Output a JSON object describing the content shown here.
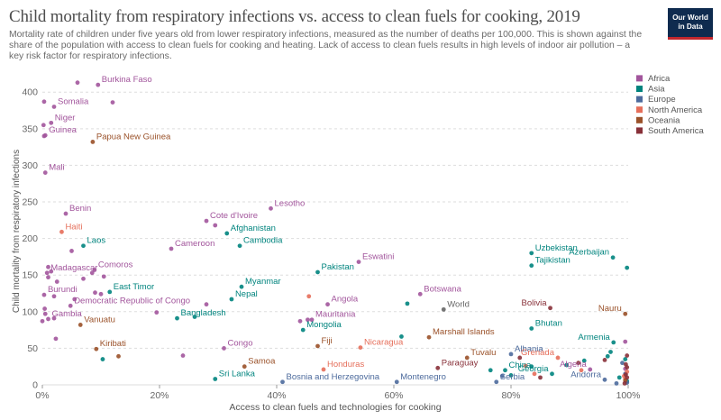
{
  "header": {
    "title": "Child mortality from respiratory infections vs. access to clean fuels for cooking, 2019",
    "subtitle": "Mortality rate of children under five years old from lower respiratory infections, measured as the number of deaths per 100,000. This is shown against the share of the population with access to clean fuels for cooking and heating. Lack of access to clean fuels results in high levels of indoor air pollution – a key risk factor for respiratory infections.",
    "logo_line1": "Our World",
    "logo_line2": "in Data"
  },
  "colors": {
    "Africa": "#a2559c",
    "Asia": "#00847e",
    "Europe": "#4c6a9c",
    "North America": "#e56e5a",
    "Oceania": "#9a5129",
    "South America": "#883039",
    "label_gray": "#666666"
  },
  "chart_data": {
    "type": "scatter",
    "title": "Child mortality from respiratory infections vs. access to clean fuels for cooking, 2019",
    "xlabel": "Access to clean fuels and technologies for cooking",
    "ylabel": "Child mortality from respiratory infections",
    "xlim": [
      0,
      100
    ],
    "ylim": [
      0,
      420
    ],
    "x_ticks": [
      "0%",
      "20%",
      "40%",
      "60%",
      "80%",
      "100%"
    ],
    "x_tick_values": [
      0,
      20,
      40,
      60,
      80,
      100
    ],
    "y_ticks": [
      "0",
      "50",
      "100",
      "150",
      "200",
      "250",
      "300",
      "350",
      "400"
    ],
    "y_tick_values": [
      0,
      50,
      100,
      150,
      200,
      250,
      300,
      350,
      400
    ],
    "grid": "horizontal dashed",
    "legend_position": "right",
    "legend": [
      "Africa",
      "Asia",
      "Europe",
      "North America",
      "Oceania",
      "South America"
    ],
    "labeled_points": [
      {
        "name": "Burkina Faso",
        "region": "Africa",
        "x": 9.5,
        "y": 410
      },
      {
        "name": "Somalia",
        "region": "Africa",
        "x": 2.0,
        "y": 380
      },
      {
        "name": "Niger",
        "region": "Africa",
        "x": 1.5,
        "y": 358
      },
      {
        "name": "Guinea",
        "region": "Africa",
        "x": 0.5,
        "y": 341
      },
      {
        "name": "Papua New Guinea",
        "region": "Oceania",
        "x": 8.6,
        "y": 332
      },
      {
        "name": "Mali",
        "region": "Africa",
        "x": 0.5,
        "y": 290
      },
      {
        "name": "Lesotho",
        "region": "Africa",
        "x": 39.0,
        "y": 241
      },
      {
        "name": "Benin",
        "region": "Africa",
        "x": 4.0,
        "y": 234
      },
      {
        "name": "Cote d'Ivoire",
        "region": "Africa",
        "x": 28.0,
        "y": 224
      },
      {
        "name": "Haiti",
        "region": "North America",
        "x": 3.3,
        "y": 209
      },
      {
        "name": "Afghanistan",
        "region": "Asia",
        "x": 31.5,
        "y": 207
      },
      {
        "name": "Laos",
        "region": "Asia",
        "x": 7.0,
        "y": 190
      },
      {
        "name": "Cameroon",
        "region": "Africa",
        "x": 22.0,
        "y": 186
      },
      {
        "name": "Cambodia",
        "region": "Asia",
        "x": 33.7,
        "y": 190
      },
      {
        "name": "Uzbekistan",
        "region": "Asia",
        "x": 83.5,
        "y": 180
      },
      {
        "name": "Azerbaijan",
        "region": "Asia",
        "x": 97.4,
        "y": 174
      },
      {
        "name": "Eswatini",
        "region": "Africa",
        "x": 54.0,
        "y": 168
      },
      {
        "name": "Tajikistan",
        "region": "Asia",
        "x": 83.5,
        "y": 163
      },
      {
        "name": "Comoros",
        "region": "Africa",
        "x": 8.9,
        "y": 157
      },
      {
        "name": "Pakistan",
        "region": "Asia",
        "x": 47.0,
        "y": 154
      },
      {
        "name": "Madagascar",
        "region": "Africa",
        "x": 0.8,
        "y": 153
      },
      {
        "name": "Myanmar",
        "region": "Asia",
        "x": 34.0,
        "y": 134
      },
      {
        "name": "East Timor",
        "region": "Asia",
        "x": 11.5,
        "y": 127
      },
      {
        "name": "Botswana",
        "region": "Africa",
        "x": 64.5,
        "y": 124
      },
      {
        "name": "Burundi",
        "region": "Africa",
        "x": 0.3,
        "y": 123
      },
      {
        "name": "Nepal",
        "region": "Asia",
        "x": 32.3,
        "y": 117
      },
      {
        "name": "Angola",
        "region": "Africa",
        "x": 48.7,
        "y": 110
      },
      {
        "name": "Democratic Republic of Congo",
        "region": "Africa",
        "x": 4.8,
        "y": 108
      },
      {
        "name": "Bolivia",
        "region": "South America",
        "x": 86.7,
        "y": 105
      },
      {
        "name": "World",
        "region": "World",
        "x": 68.5,
        "y": 103
      },
      {
        "name": "Nauru",
        "region": "Oceania",
        "x": 99.5,
        "y": 97
      },
      {
        "name": "Gambia",
        "region": "Africa",
        "x": 1.0,
        "y": 90
      },
      {
        "name": "Bangladesh",
        "region": "Asia",
        "x": 23.0,
        "y": 91
      },
      {
        "name": "Vanuatu",
        "region": "Oceania",
        "x": 6.5,
        "y": 82
      },
      {
        "name": "Mauritania",
        "region": "Africa",
        "x": 46.0,
        "y": 89
      },
      {
        "name": "Bhutan",
        "region": "Asia",
        "x": 83.5,
        "y": 77
      },
      {
        "name": "Mongolia",
        "region": "Asia",
        "x": 44.5,
        "y": 75
      },
      {
        "name": "Marshall Islands",
        "region": "Oceania",
        "x": 66.0,
        "y": 65
      },
      {
        "name": "Fiji",
        "region": "Oceania",
        "x": 47.0,
        "y": 53
      },
      {
        "name": "Nicaragua",
        "region": "North America",
        "x": 54.3,
        "y": 51
      },
      {
        "name": "Kiribati",
        "region": "Oceania",
        "x": 9.2,
        "y": 49
      },
      {
        "name": "Congo",
        "region": "Africa",
        "x": 31.0,
        "y": 50
      },
      {
        "name": "Armenia",
        "region": "Asia",
        "x": 97.5,
        "y": 58
      },
      {
        "name": "Albania",
        "region": "Europe",
        "x": 80.0,
        "y": 42
      },
      {
        "name": "Tuvalu",
        "region": "Oceania",
        "x": 72.5,
        "y": 37
      },
      {
        "name": "Grenada",
        "region": "North America",
        "x": 88.0,
        "y": 37
      },
      {
        "name": "Samoa",
        "region": "Oceania",
        "x": 34.5,
        "y": 25
      },
      {
        "name": "Honduras",
        "region": "North America",
        "x": 48.0,
        "y": 21
      },
      {
        "name": "Paraguay",
        "region": "South America",
        "x": 67.5,
        "y": 23
      },
      {
        "name": "China",
        "region": "Asia",
        "x": 79.0,
        "y": 20
      },
      {
        "name": "Georgia",
        "region": "Asia",
        "x": 87.0,
        "y": 15
      },
      {
        "name": "Algeria",
        "region": "Africa",
        "x": 93.5,
        "y": 21
      },
      {
        "name": "Sri Lanka",
        "region": "Asia",
        "x": 29.5,
        "y": 8
      },
      {
        "name": "Bosnia and Herzegovina",
        "region": "Europe",
        "x": 41.0,
        "y": 4
      },
      {
        "name": "Montenegro",
        "region": "Europe",
        "x": 60.5,
        "y": 4
      },
      {
        "name": "Serbia",
        "region": "Europe",
        "x": 77.5,
        "y": 4
      },
      {
        "name": "Andorra",
        "region": "Europe",
        "x": 96.0,
        "y": 7
      }
    ],
    "other_points": [
      {
        "region": "Africa",
        "x": 0.2,
        "y": 355
      },
      {
        "region": "Africa",
        "x": 0.3,
        "y": 340
      },
      {
        "region": "Africa",
        "x": 6.0,
        "y": 413
      },
      {
        "region": "Africa",
        "x": 0.3,
        "y": 387
      },
      {
        "region": "Africa",
        "x": 12.0,
        "y": 386
      },
      {
        "region": "Africa",
        "x": 29.5,
        "y": 218
      },
      {
        "region": "Africa",
        "x": 5.0,
        "y": 183
      },
      {
        "region": "Africa",
        "x": 1.0,
        "y": 161
      },
      {
        "region": "Africa",
        "x": 1.5,
        "y": 155
      },
      {
        "region": "Africa",
        "x": 1.0,
        "y": 147
      },
      {
        "region": "Africa",
        "x": 10.5,
        "y": 148
      },
      {
        "region": "Africa",
        "x": 8.5,
        "y": 153
      },
      {
        "region": "Africa",
        "x": 7.0,
        "y": 145
      },
      {
        "region": "Africa",
        "x": 2.5,
        "y": 141
      },
      {
        "region": "Africa",
        "x": 10.0,
        "y": 124
      },
      {
        "region": "Africa",
        "x": 9.0,
        "y": 126
      },
      {
        "region": "Africa",
        "x": 2.0,
        "y": 121
      },
      {
        "region": "Africa",
        "x": 5.5,
        "y": 117
      },
      {
        "region": "Africa",
        "x": 0.4,
        "y": 104
      },
      {
        "region": "Africa",
        "x": 0.5,
        "y": 97
      },
      {
        "region": "Africa",
        "x": 19.5,
        "y": 99
      },
      {
        "region": "Africa",
        "x": 28.0,
        "y": 110
      },
      {
        "region": "Africa",
        "x": 2.0,
        "y": 91
      },
      {
        "region": "Africa",
        "x": 0.0,
        "y": 87
      },
      {
        "region": "Africa",
        "x": 44.0,
        "y": 87
      },
      {
        "region": "Africa",
        "x": 45.3,
        "y": 89
      },
      {
        "region": "Africa",
        "x": 2.3,
        "y": 63
      },
      {
        "region": "Africa",
        "x": 24.0,
        "y": 40
      },
      {
        "region": "Africa",
        "x": 99.5,
        "y": 59
      },
      {
        "region": "Africa",
        "x": 99.5,
        "y": 22
      },
      {
        "region": "Asia",
        "x": 99.8,
        "y": 160
      },
      {
        "region": "Asia",
        "x": 62.3,
        "y": 111
      },
      {
        "region": "Asia",
        "x": 26.0,
        "y": 93
      },
      {
        "region": "Asia",
        "x": 61.3,
        "y": 66
      },
      {
        "region": "Asia",
        "x": 10.3,
        "y": 35
      },
      {
        "region": "Asia",
        "x": 97.0,
        "y": 45
      },
      {
        "region": "Asia",
        "x": 96.5,
        "y": 39
      },
      {
        "region": "Asia",
        "x": 92.5,
        "y": 33
      },
      {
        "region": "Asia",
        "x": 89.5,
        "y": 27
      },
      {
        "region": "Asia",
        "x": 83.5,
        "y": 25
      },
      {
        "region": "Asia",
        "x": 76.5,
        "y": 20
      },
      {
        "region": "Asia",
        "x": 80.0,
        "y": 13
      },
      {
        "region": "Asia",
        "x": 98.5,
        "y": 10
      },
      {
        "region": "Asia",
        "x": 99.5,
        "y": 35
      },
      {
        "region": "Asia",
        "x": 99.8,
        "y": 5
      },
      {
        "region": "Europe",
        "x": 99.0,
        "y": 30
      },
      {
        "region": "Europe",
        "x": 99.5,
        "y": 15
      },
      {
        "region": "Europe",
        "x": 99.8,
        "y": 3
      },
      {
        "region": "Europe",
        "x": 98.0,
        "y": 2
      },
      {
        "region": "Europe",
        "x": 78.5,
        "y": 12
      },
      {
        "region": "North America",
        "x": 45.5,
        "y": 121
      },
      {
        "region": "North America",
        "x": 82.5,
        "y": 26
      },
      {
        "region": "North America",
        "x": 84.0,
        "y": 15
      },
      {
        "region": "North America",
        "x": 92.0,
        "y": 20
      },
      {
        "region": "North America",
        "x": 99.5,
        "y": 8
      },
      {
        "region": "North America",
        "x": 99.3,
        "y": 12
      },
      {
        "region": "North America",
        "x": 99.8,
        "y": 18
      },
      {
        "region": "Oceania",
        "x": 13.0,
        "y": 39
      },
      {
        "region": "Oceania",
        "x": 99.5,
        "y": 6
      },
      {
        "region": "South America",
        "x": 99.6,
        "y": 28
      },
      {
        "region": "South America",
        "x": 99.8,
        "y": 24
      },
      {
        "region": "South America",
        "x": 99.6,
        "y": 14
      },
      {
        "region": "South America",
        "x": 99.8,
        "y": 10
      },
      {
        "region": "South America",
        "x": 99.4,
        "y": 2
      },
      {
        "region": "South America",
        "x": 96.0,
        "y": 34
      },
      {
        "region": "South America",
        "x": 91.5,
        "y": 30
      },
      {
        "region": "South America",
        "x": 81.5,
        "y": 37
      },
      {
        "region": "South America",
        "x": 85.0,
        "y": 10
      },
      {
        "region": "South America",
        "x": 99.8,
        "y": 40
      }
    ]
  }
}
